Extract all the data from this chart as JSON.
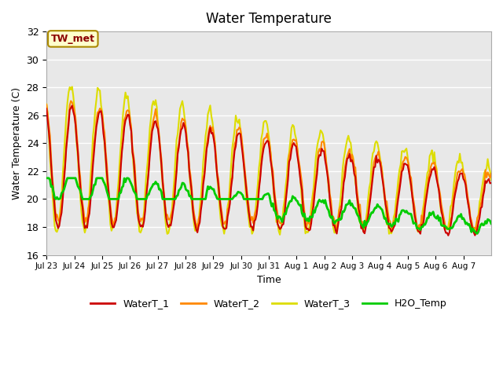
{
  "title": "Water Temperature",
  "ylabel": "Water Temperature (C)",
  "xlabel": "Time",
  "annotation": "TW_met",
  "ylim": [
    16,
    32
  ],
  "background_color": "#e8e8e8",
  "line_colors": {
    "WaterT_1": "#cc0000",
    "WaterT_2": "#ff8800",
    "WaterT_3": "#dddd00",
    "H2O_Temp": "#00cc00"
  },
  "line_widths": {
    "WaterT_1": 1.5,
    "WaterT_2": 1.5,
    "WaterT_3": 1.5,
    "H2O_Temp": 2.0
  },
  "x_tick_labels": [
    "Jul 23",
    "Jul 24",
    "Jul 25",
    "Jul 26",
    "Jul 27",
    "Jul 28",
    "Jul 29",
    "Jul 30",
    "Jul 31",
    "Aug 1",
    "Aug 2",
    "Aug 3",
    "Aug 4",
    "Aug 5",
    "Aug 6",
    "Aug 7"
  ],
  "n_days": 16,
  "points_per_day": 24,
  "yticks": [
    16,
    18,
    20,
    22,
    24,
    26,
    28,
    30,
    32
  ]
}
